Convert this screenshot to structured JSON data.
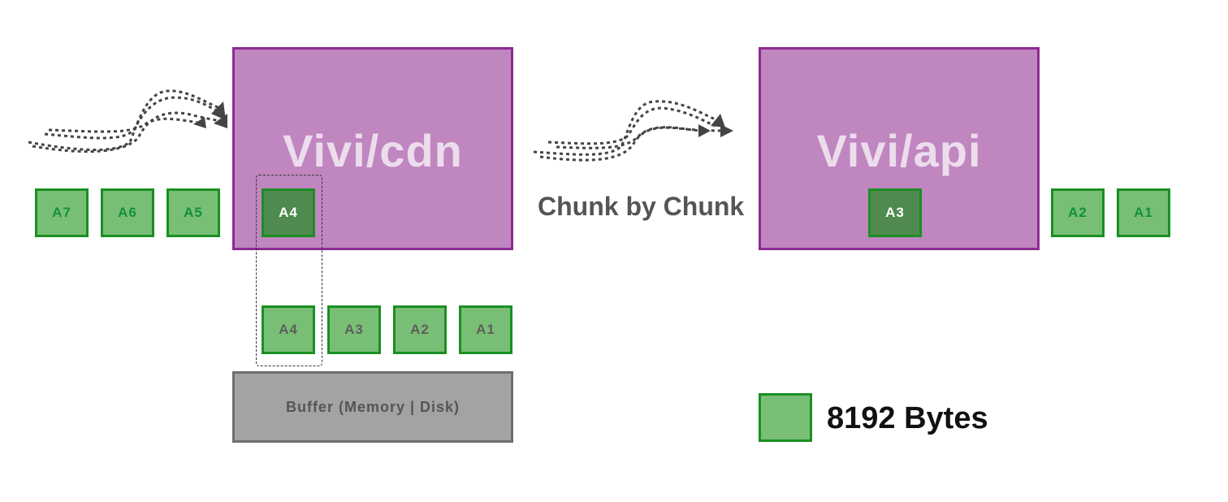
{
  "cdn": {
    "title": "Vivi/cdn"
  },
  "api": {
    "title": "Vivi/api"
  },
  "incoming_chunks": [
    "A7",
    "A6",
    "A5"
  ],
  "cdn_current_chunk": "A4",
  "buffer_chunks": [
    "A4",
    "A3",
    "A2",
    "A1"
  ],
  "buffer": {
    "label": "Buffer (Memory | Disk)"
  },
  "transfer": {
    "label": "Chunk by Chunk"
  },
  "api_current_chunk": "A3",
  "output_chunks": [
    "A2",
    "A1"
  ],
  "legend": {
    "label": "8192 Bytes"
  },
  "colors": {
    "server_fill": "#c086c0",
    "server_border": "#8e2a92",
    "chunk_fill": "#78bf75",
    "chunk_border": "#1a8f24",
    "active_chunk_fill": "#4f8a4f",
    "buffer_fill": "#a3a3a3"
  }
}
